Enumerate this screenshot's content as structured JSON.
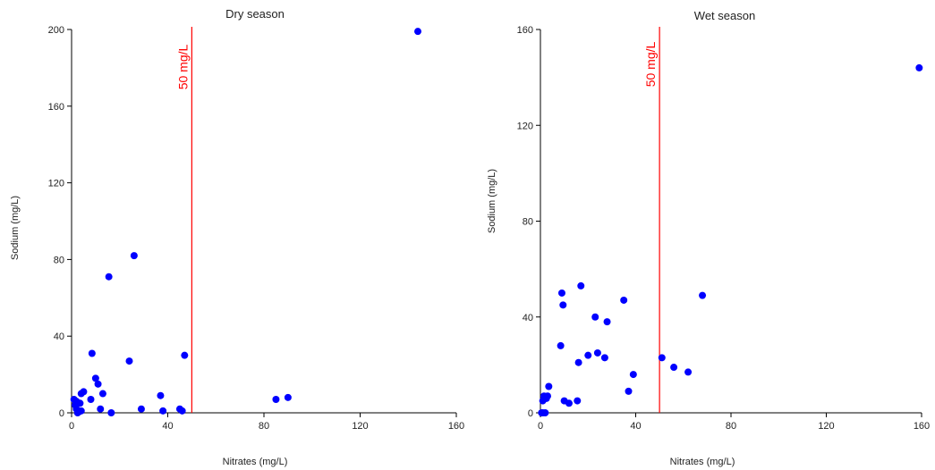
{
  "chart_data": [
    {
      "type": "scatter",
      "title": "Dry season",
      "xlabel": "Nitrates (mg/L)",
      "ylabel": "Sodium (mg/L)",
      "xlim": [
        0,
        160
      ],
      "ylim": [
        0,
        200
      ],
      "xticks": [
        0,
        40,
        80,
        120,
        160
      ],
      "yticks": [
        0,
        40,
        80,
        120,
        160,
        200
      ],
      "grid": false,
      "reference_line": {
        "x": 50,
        "label": "50 mg/L",
        "color": "#ff0000"
      },
      "marker_color": "#0000ff",
      "points": [
        {
          "x": 1,
          "y": 7
        },
        {
          "x": 1.5,
          "y": 4
        },
        {
          "x": 2,
          "y": 2
        },
        {
          "x": 2,
          "y": 6
        },
        {
          "x": 2.5,
          "y": 0
        },
        {
          "x": 3,
          "y": 0.5
        },
        {
          "x": 3.5,
          "y": 5
        },
        {
          "x": 4,
          "y": 1
        },
        {
          "x": 4,
          "y": 10
        },
        {
          "x": 5,
          "y": 11
        },
        {
          "x": 8,
          "y": 7
        },
        {
          "x": 8.5,
          "y": 31
        },
        {
          "x": 10,
          "y": 18
        },
        {
          "x": 11,
          "y": 15
        },
        {
          "x": 12,
          "y": 2
        },
        {
          "x": 13,
          "y": 10
        },
        {
          "x": 15.5,
          "y": 71
        },
        {
          "x": 16.5,
          "y": 0
        },
        {
          "x": 24,
          "y": 27
        },
        {
          "x": 26,
          "y": 82
        },
        {
          "x": 29,
          "y": 2
        },
        {
          "x": 37,
          "y": 9
        },
        {
          "x": 38,
          "y": 1
        },
        {
          "x": 45,
          "y": 2
        },
        {
          "x": 46,
          "y": 1
        },
        {
          "x": 47,
          "y": 30
        },
        {
          "x": 85,
          "y": 7
        },
        {
          "x": 90,
          "y": 8
        },
        {
          "x": 144,
          "y": 199
        }
      ]
    },
    {
      "type": "scatter",
      "title": "Wet season",
      "xlabel": "Nitrates (mg/L)",
      "ylabel": "Sodium (mg/L)",
      "xlim": [
        0,
        160
      ],
      "ylim": [
        0,
        160
      ],
      "xticks": [
        0,
        40,
        80,
        120,
        160
      ],
      "yticks": [
        0,
        40,
        80,
        120,
        160
      ],
      "grid": false,
      "reference_line": {
        "x": 50,
        "label": "50 mg/L",
        "color": "#ff0000"
      },
      "marker_color": "#0000ff",
      "points": [
        {
          "x": 0.5,
          "y": 0
        },
        {
          "x": 1,
          "y": 0
        },
        {
          "x": 1,
          "y": 5
        },
        {
          "x": 1.5,
          "y": 7
        },
        {
          "x": 2,
          "y": 0
        },
        {
          "x": 2.5,
          "y": 6
        },
        {
          "x": 3,
          "y": 7
        },
        {
          "x": 3.5,
          "y": 11
        },
        {
          "x": 8.5,
          "y": 28
        },
        {
          "x": 9,
          "y": 50
        },
        {
          "x": 9.5,
          "y": 45
        },
        {
          "x": 10,
          "y": 5
        },
        {
          "x": 12,
          "y": 4
        },
        {
          "x": 15.5,
          "y": 5
        },
        {
          "x": 16,
          "y": 21
        },
        {
          "x": 17,
          "y": 53
        },
        {
          "x": 20,
          "y": 24
        },
        {
          "x": 23,
          "y": 40
        },
        {
          "x": 24,
          "y": 25
        },
        {
          "x": 27,
          "y": 23
        },
        {
          "x": 28,
          "y": 38
        },
        {
          "x": 35,
          "y": 47
        },
        {
          "x": 37,
          "y": 9
        },
        {
          "x": 39,
          "y": 16
        },
        {
          "x": 51,
          "y": 23
        },
        {
          "x": 56,
          "y": 19
        },
        {
          "x": 62,
          "y": 17
        },
        {
          "x": 68,
          "y": 49
        },
        {
          "x": 159,
          "y": 144
        }
      ]
    }
  ]
}
